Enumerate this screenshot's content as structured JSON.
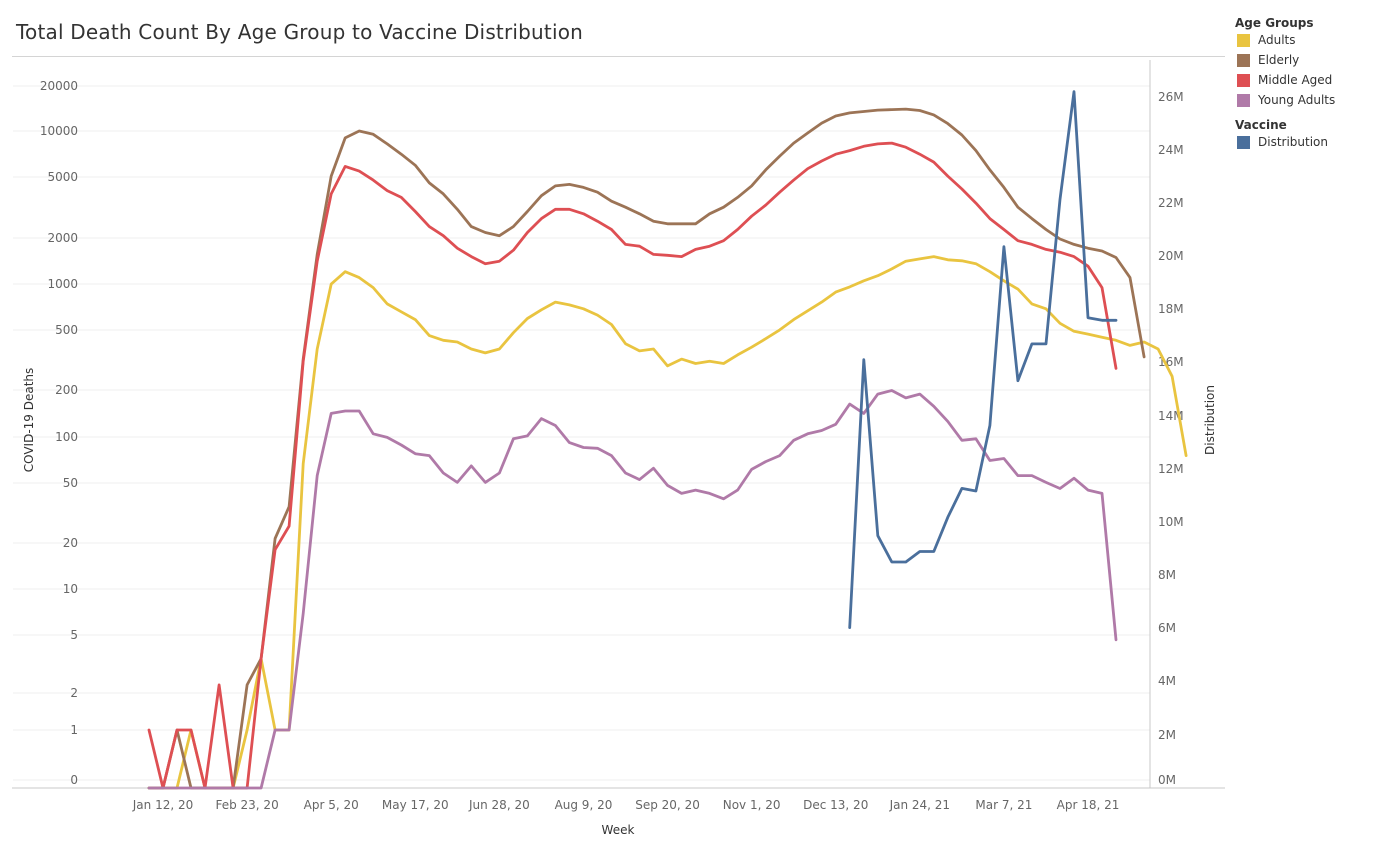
{
  "title": "Total Death Count By Age Group to Vaccine Distribution",
  "legend": {
    "age_groups_title": "Age Groups",
    "age_groups": [
      {
        "label": "Adults",
        "color": "#E9C440"
      },
      {
        "label": "Elderly",
        "color": "#9C7456"
      },
      {
        "label": "Middle Aged",
        "color": "#DE4F53"
      },
      {
        "label": "Young Adults",
        "color": "#B07AA8"
      }
    ],
    "vaccine_title": "Vaccine",
    "vaccine": [
      {
        "label": "Distribution",
        "color": "#4A6F9C"
      }
    ]
  },
  "chart_data": {
    "type": "line",
    "xlabel": "Week",
    "ylabel": "COVID-19 Deaths",
    "y2label": "Distribution",
    "x_tick_labels": [
      "Jan 12, 20",
      "Feb 23, 20",
      "Apr 5, 20",
      "May 17, 20",
      "Jun 28, 20",
      "Aug 9, 20",
      "Sep 20, 20",
      "Nov 1, 20",
      "Dec 13, 20",
      "Jan 24, 21",
      "Mar 7, 21",
      "Apr 18, 21"
    ],
    "y_tick_labels": [
      "20000",
      "10000",
      "5000",
      "2000",
      "1000",
      "500",
      "200",
      "100",
      "50",
      "20",
      "10",
      "5",
      "2",
      "1",
      "0"
    ],
    "y2_tick_labels": [
      "26M",
      "24M",
      "22M",
      "20M",
      "18M",
      "16M",
      "14M",
      "12M",
      "10M",
      "8M",
      "6M",
      "4M",
      "2M",
      "0M"
    ],
    "y_scale": "log",
    "grid": true,
    "legend_position": "right",
    "x_first_week": "2020-01-05",
    "x_week_step_days": 7,
    "series": [
      {
        "name": "Adults",
        "axis": "left",
        "color": "#E9C440",
        "values": [
          0,
          0,
          0,
          1,
          0,
          0,
          0,
          1,
          3,
          1,
          1,
          60,
          350,
          950,
          1150,
          1050,
          900,
          700,
          620,
          550,
          430,
          400,
          390,
          350,
          330,
          350,
          450,
          560,
          640,
          720,
          690,
          650,
          590,
          510,
          380,
          340,
          350,
          270,
          300,
          280,
          290,
          280,
          320,
          360,
          410,
          470,
          550,
          630,
          720,
          840,
          910,
          1000,
          1080,
          1200,
          1350,
          1400,
          1450,
          1380,
          1360,
          1300,
          1150,
          1000,
          880,
          700,
          650,
          520,
          460,
          440,
          420,
          400,
          370,
          390,
          350,
          230,
          68
        ]
      },
      {
        "name": "Elderly",
        "axis": "left",
        "color": "#9C7456",
        "values": [
          0,
          0,
          1,
          0,
          0,
          0,
          0,
          2,
          3,
          19,
          31,
          300,
          1500,
          5000,
          9000,
          10000,
          9500,
          8200,
          7000,
          5900,
          4500,
          3800,
          3000,
          2300,
          2100,
          2000,
          2300,
          2900,
          3700,
          4300,
          4400,
          4200,
          3900,
          3400,
          3100,
          2800,
          2500,
          2400,
          2400,
          2400,
          2800,
          3100,
          3600,
          4300,
          5500,
          6800,
          8300,
          9700,
          11300,
          12600,
          13200,
          13500,
          13800,
          13900,
          14000,
          13700,
          12800,
          11200,
          9400,
          7400,
          5500,
          4200,
          3100,
          2600,
          2200,
          1900,
          1750,
          1650,
          1580,
          1430,
          1050,
          310
        ]
      },
      {
        "name": "Middle Aged",
        "axis": "left",
        "color": "#DE4F53",
        "values": [
          1,
          0,
          1,
          1,
          0,
          2,
          0,
          0,
          3,
          16,
          23,
          290,
          1350,
          3800,
          5800,
          5400,
          4700,
          4000,
          3600,
          2900,
          2300,
          2000,
          1650,
          1450,
          1300,
          1350,
          1600,
          2100,
          2600,
          3000,
          3000,
          2800,
          2500,
          2200,
          1750,
          1700,
          1500,
          1480,
          1450,
          1620,
          1700,
          1850,
          2200,
          2700,
          3200,
          3900,
          4700,
          5600,
          6300,
          7000,
          7400,
          7900,
          8200,
          8300,
          7800,
          7000,
          6200,
          5000,
          4100,
          3300,
          2600,
          2200,
          1850,
          1750,
          1620,
          1550,
          1450,
          1250,
          900,
          260
        ]
      },
      {
        "name": "Young Adults",
        "axis": "left",
        "color": "#B07AA8",
        "values": [
          0,
          0,
          0,
          0,
          0,
          0,
          0,
          0,
          0,
          1,
          1,
          6,
          50,
          130,
          135,
          135,
          95,
          90,
          80,
          70,
          68,
          52,
          45,
          58,
          45,
          52,
          88,
          92,
          120,
          108,
          83,
          77,
          76,
          68,
          52,
          47,
          56,
          43,
          38,
          40,
          38,
          35,
          40,
          55,
          62,
          68,
          86,
          95,
          100,
          110,
          150,
          130,
          175,
          185,
          165,
          175,
          145,
          115,
          86,
          88,
          63,
          65,
          50,
          50,
          45,
          41,
          48,
          40,
          38,
          4
        ]
      },
      {
        "name": "Distribution",
        "axis": "right",
        "color": "#4A6F9C",
        "x_start_week": 50,
        "values": [
          5.8,
          16.0,
          9.3,
          8.3,
          8.3,
          8.7,
          8.7,
          10.0,
          11.1,
          11.0,
          13.5,
          20.3,
          15.2,
          16.6,
          16.6,
          22.1,
          26.2,
          17.6,
          17.5,
          17.5
        ]
      }
    ]
  }
}
